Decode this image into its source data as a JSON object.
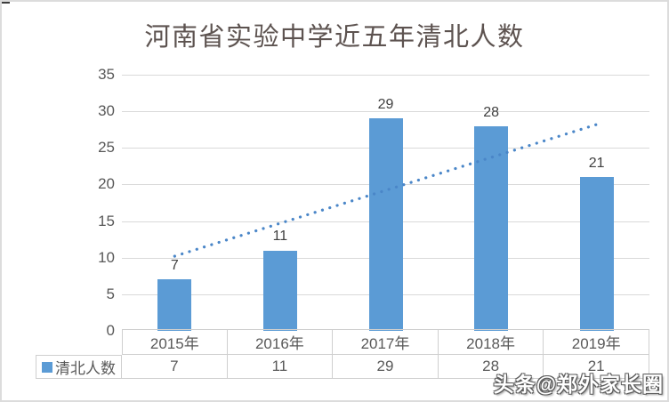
{
  "title": "河南省实验中学近五年清北人数",
  "watermark": "头条@郑外家长圈",
  "colors": {
    "bar": "#5b9bd5",
    "trendline": "#4a86c8",
    "gridline": "#d9d9d9",
    "table_border": "#cfcfcf",
    "axis_text": "#595959",
    "data_label_text": "#404040",
    "title_text": "#5d5350",
    "frame_border": "#dcdcdc",
    "watermark_fill": "#ffffff",
    "watermark_outline": "#5a5a5a"
  },
  "chart_data": {
    "type": "bar",
    "title": "河南省实验中学近五年清北人数",
    "categories": [
      "2015年",
      "2016年",
      "2017年",
      "2018年",
      "2019年"
    ],
    "series": [
      {
        "name": "清北人数",
        "values": [
          7,
          11,
          29,
          28,
          21
        ]
      }
    ],
    "data_labels": [
      7,
      11,
      29,
      28,
      21
    ],
    "yticks": [
      0,
      5,
      10,
      15,
      20,
      25,
      30,
      35
    ],
    "ylim": [
      0,
      35
    ],
    "xlabel": "",
    "ylabel": "",
    "grid": true,
    "legend_position": "data-table-left",
    "trendline": {
      "style": "dotted",
      "start_value": 10.2,
      "end_value": 28.2
    }
  }
}
